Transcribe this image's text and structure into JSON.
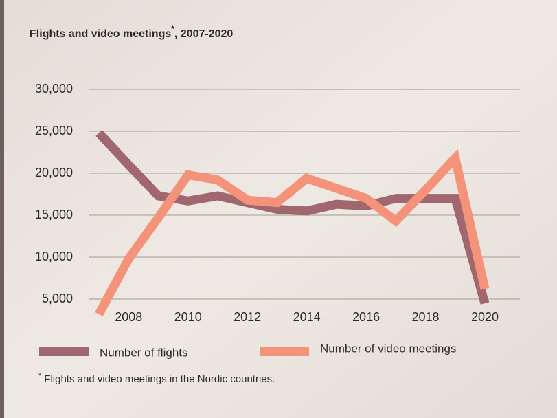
{
  "chart_data": {
    "type": "line",
    "title": "Flights and video meetings",
    "title_mark": "*",
    "title_suffix": ", 2007-2020",
    "footnote_mark": "*",
    "footnote": "Flights and video meetings in the Nordic countries.",
    "x": [
      2007,
      2008,
      2009,
      2010,
      2011,
      2012,
      2013,
      2014,
      2015,
      2016,
      2017,
      2018,
      2019,
      2020
    ],
    "series": [
      {
        "name": "Number of flights",
        "color": "#a0676e",
        "values": [
          24800,
          21000,
          17300,
          16700,
          17300,
          16500,
          15700,
          15500,
          16300,
          16100,
          17000,
          17000,
          17000,
          4500
        ]
      },
      {
        "name": "Number of video meetings",
        "color": "#f4937a",
        "values": [
          3200,
          9800,
          14700,
          19800,
          19200,
          16800,
          16500,
          19400,
          18200,
          17000,
          14300,
          18000,
          21800,
          6200
        ]
      }
    ],
    "xlim": [
      2007,
      2020
    ],
    "xticks": [
      2008,
      2010,
      2012,
      2014,
      2016,
      2018,
      2020
    ],
    "ylim": [
      3000,
      30000
    ],
    "yticks": [
      {
        "value": 5000,
        "label": "5,000"
      },
      {
        "value": 10000,
        "label": "10,000"
      },
      {
        "value": 15000,
        "label": "15,000"
      },
      {
        "value": 20000,
        "label": "20,000"
      },
      {
        "value": 25000,
        "label": "25,000"
      },
      {
        "value": 30000,
        "label": "30,000"
      }
    ],
    "grid": true
  }
}
